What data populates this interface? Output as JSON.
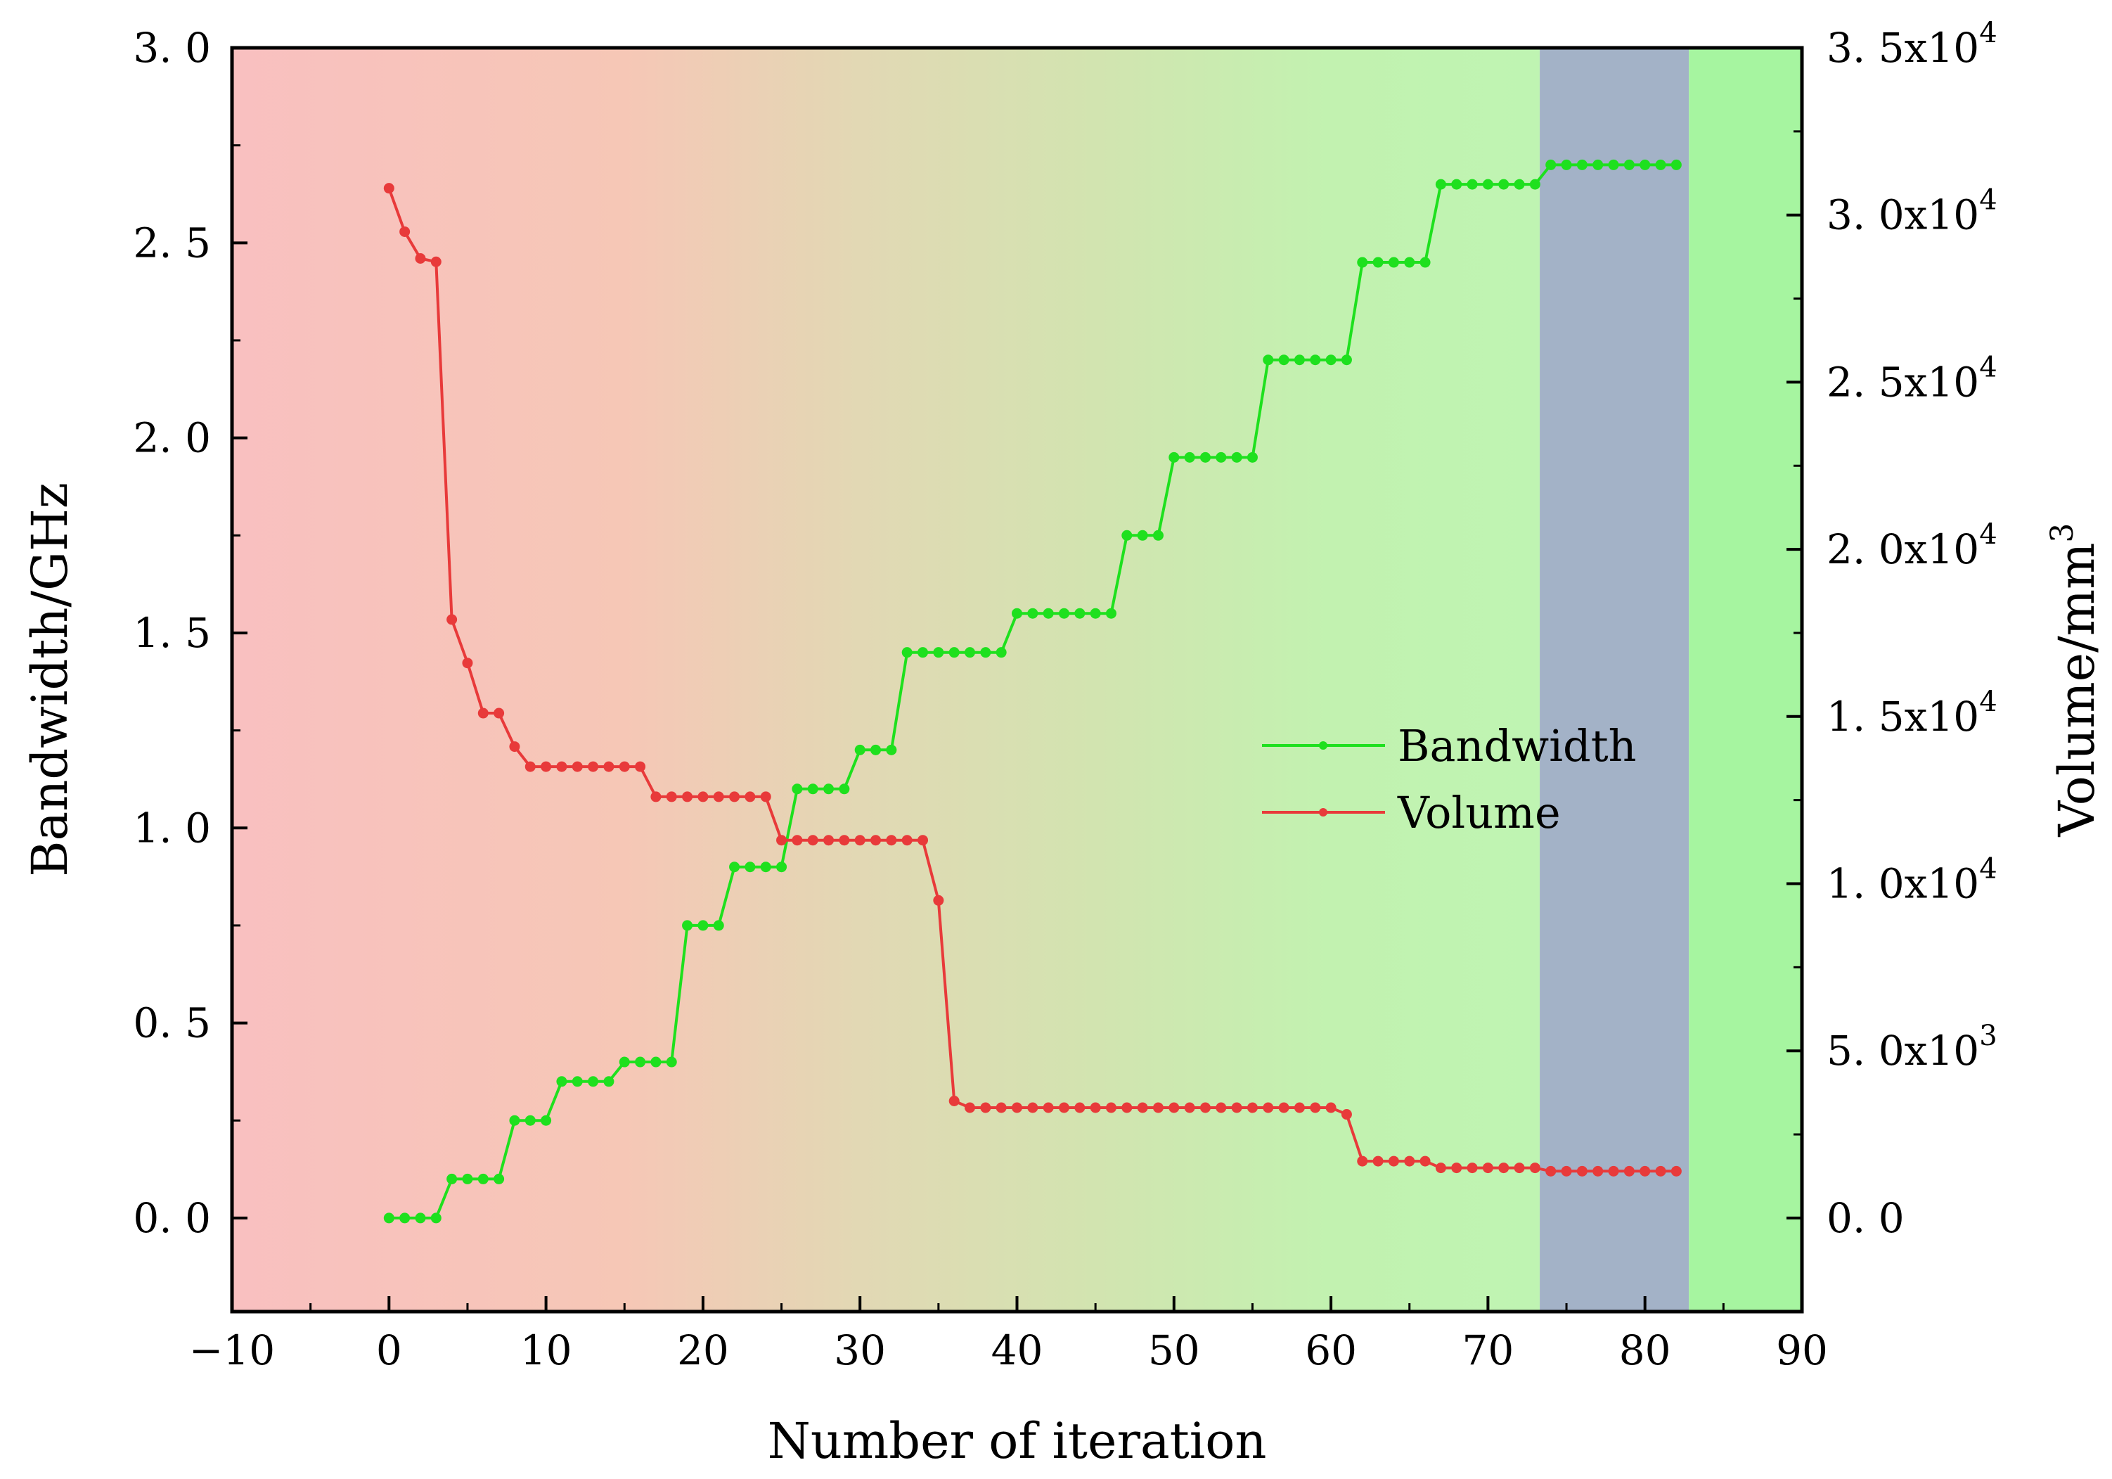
{
  "chart_data": {
    "type": "line",
    "xlabel": "Number of iteration",
    "ylabel_left": "Bandwidth/GHz",
    "ylabel_right_base": "Volume/mm",
    "ylabel_right_sup": "3",
    "xlim": [
      -10,
      90
    ],
    "ylim_left": [
      -0.24,
      3.0
    ],
    "ylim_right": [
      -2800,
      35000
    ],
    "x_ticks": [
      -10,
      0,
      10,
      20,
      30,
      40,
      50,
      60,
      70,
      80,
      90
    ],
    "x_tick_labels": [
      "−10",
      "0",
      "10",
      "20",
      "30",
      "40",
      "50",
      "60",
      "70",
      "80",
      "90"
    ],
    "y_left_ticks": [
      0.0,
      0.5,
      1.0,
      1.5,
      2.0,
      2.5,
      3.0
    ],
    "y_left_tick_labels": [
      "0. 0",
      "0. 5",
      "1. 0",
      "1. 5",
      "2. 0",
      "2. 5",
      "3. 0"
    ],
    "y_right_ticks": [
      0,
      5000,
      10000,
      15000,
      20000,
      25000,
      30000,
      35000
    ],
    "y_right_tick_labels": [
      {
        "base": "0. 0",
        "sup": ""
      },
      {
        "base": "5. 0x10",
        "sup": "3"
      },
      {
        "base": "1. 0x10",
        "sup": "4"
      },
      {
        "base": "1. 5x10",
        "sup": "4"
      },
      {
        "base": "2. 0x10",
        "sup": "4"
      },
      {
        "base": "2. 5x10",
        "sup": "4"
      },
      {
        "base": "3. 0x10",
        "sup": "4"
      },
      {
        "base": "3. 5x10",
        "sup": "4"
      }
    ],
    "background": {
      "gradient_stops": [
        {
          "x": -10,
          "color": "#f9c0c0"
        },
        {
          "x": 15,
          "color": "#f6c7b6"
        },
        {
          "x": 30,
          "color": "#e2d8b4"
        },
        {
          "x": 45,
          "color": "#d2e4b0"
        },
        {
          "x": 60,
          "color": "#c2f2b0"
        },
        {
          "x": 73,
          "color": "#bff4b2"
        }
      ],
      "highlight_band": {
        "x_start": 73.3,
        "x_end": 82.8,
        "color": "#a3b2c7"
      },
      "right_region": {
        "x_start": 82.8,
        "x_end": 90,
        "color": "#a6f5a0"
      }
    },
    "series": [
      {
        "name": "Bandwidth",
        "axis": "left",
        "color": "#1ee01e",
        "x": [
          0,
          1,
          2,
          3,
          4,
          5,
          6,
          7,
          8,
          9,
          10,
          11,
          12,
          13,
          14,
          15,
          16,
          17,
          18,
          19,
          20,
          21,
          22,
          23,
          24,
          25,
          26,
          27,
          28,
          29,
          30,
          31,
          32,
          33,
          34,
          35,
          36,
          37,
          38,
          39,
          40,
          41,
          42,
          43,
          44,
          45,
          46,
          47,
          48,
          49,
          50,
          51,
          52,
          53,
          54,
          55,
          56,
          57,
          58,
          59,
          60,
          61,
          62,
          63,
          64,
          65,
          66,
          67,
          68,
          69,
          70,
          71,
          72,
          73,
          74,
          75,
          76,
          77,
          78,
          79,
          80,
          81,
          82
        ],
        "values": [
          0.0,
          0.0,
          0.0,
          0.0,
          0.1,
          0.1,
          0.1,
          0.1,
          0.25,
          0.25,
          0.25,
          0.35,
          0.35,
          0.35,
          0.35,
          0.4,
          0.4,
          0.4,
          0.4,
          0.75,
          0.75,
          0.75,
          0.9,
          0.9,
          0.9,
          0.9,
          1.1,
          1.1,
          1.1,
          1.1,
          1.2,
          1.2,
          1.2,
          1.45,
          1.45,
          1.45,
          1.45,
          1.45,
          1.45,
          1.45,
          1.55,
          1.55,
          1.55,
          1.55,
          1.55,
          1.55,
          1.55,
          1.75,
          1.75,
          1.75,
          1.95,
          1.95,
          1.95,
          1.95,
          1.95,
          1.95,
          2.2,
          2.2,
          2.2,
          2.2,
          2.2,
          2.2,
          2.45,
          2.45,
          2.45,
          2.45,
          2.45,
          2.65,
          2.65,
          2.65,
          2.65,
          2.65,
          2.65,
          2.65,
          2.7,
          2.7,
          2.7,
          2.7,
          2.7,
          2.7,
          2.7,
          2.7,
          2.7
        ]
      },
      {
        "name": "Volume",
        "axis": "right",
        "color": "#e83a3a",
        "x": [
          0,
          1,
          2,
          3,
          4,
          5,
          6,
          7,
          8,
          9,
          10,
          11,
          12,
          13,
          14,
          15,
          16,
          17,
          18,
          19,
          20,
          21,
          22,
          23,
          24,
          25,
          26,
          27,
          28,
          29,
          30,
          31,
          32,
          33,
          34,
          35,
          36,
          37,
          38,
          39,
          40,
          41,
          42,
          43,
          44,
          45,
          46,
          47,
          48,
          49,
          50,
          51,
          52,
          53,
          54,
          55,
          56,
          57,
          58,
          59,
          60,
          61,
          62,
          63,
          64,
          65,
          66,
          67,
          68,
          69,
          70,
          71,
          72,
          73,
          74,
          75,
          76,
          77,
          78,
          79,
          80,
          81,
          82
        ],
        "values": [
          30800,
          29500,
          28700,
          28600,
          17900,
          16600,
          15100,
          15100,
          14100,
          13500,
          13500,
          13500,
          13500,
          13500,
          13500,
          13500,
          13500,
          12600,
          12600,
          12600,
          12600,
          12600,
          12600,
          12600,
          12600,
          11300,
          11300,
          11300,
          11300,
          11300,
          11300,
          11300,
          11300,
          11300,
          11300,
          9500,
          3500,
          3300,
          3300,
          3300,
          3300,
          3300,
          3300,
          3300,
          3300,
          3300,
          3300,
          3300,
          3300,
          3300,
          3300,
          3300,
          3300,
          3300,
          3300,
          3300,
          3300,
          3300,
          3300,
          3300,
          3300,
          3100,
          1700,
          1700,
          1700,
          1700,
          1700,
          1500,
          1500,
          1500,
          1500,
          1500,
          1500,
          1500,
          1400,
          1400,
          1400,
          1400,
          1400,
          1400,
          1400,
          1400,
          1400
        ]
      }
    ],
    "legend": {
      "placement": "center-right",
      "entries": [
        "Bandwidth",
        "Volume"
      ]
    }
  }
}
